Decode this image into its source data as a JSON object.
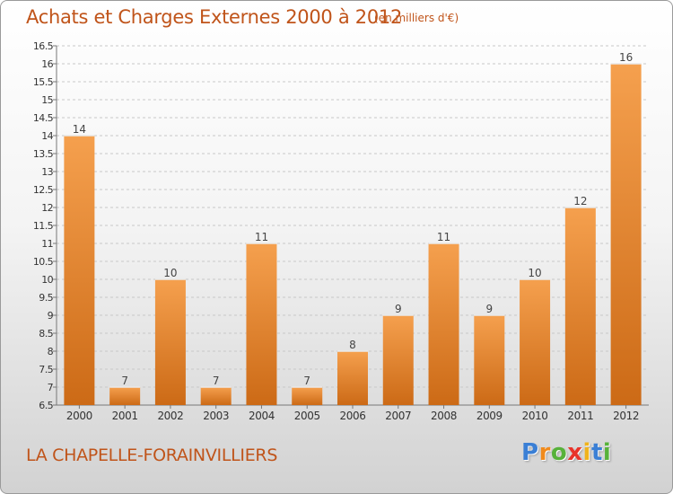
{
  "title": "Achats et Charges Externes 2000 à 2012",
  "units": "(en milliers d'€)",
  "commune": "LA CHAPELLE-FORAINVILLIERS",
  "logo": {
    "letters": [
      "P",
      "r",
      "o",
      "x",
      "i",
      "t",
      "i"
    ],
    "colors": [
      "#3a7fd5",
      "#f08a1c",
      "#57b23a",
      "#e8332a",
      "#f0b31c",
      "#3a7fd5",
      "#57b23a"
    ]
  },
  "colors": {
    "bar_light": "#f5a04e",
    "bar_dark": "#cc6a16",
    "accent": "#c0541a"
  },
  "chart_data": {
    "type": "bar",
    "title": "Achats et Charges Externes 2000 à 2012",
    "categories": [
      "2000",
      "2001",
      "2002",
      "2003",
      "2004",
      "2005",
      "2006",
      "2007",
      "2008",
      "2009",
      "2010",
      "2011",
      "2012"
    ],
    "values": [
      14,
      7,
      10,
      7,
      11,
      7,
      8,
      9,
      11,
      9,
      10,
      12,
      16
    ],
    "data_labels": [
      "14",
      "7",
      "10",
      "7",
      "11",
      "7",
      "8",
      "9",
      "11",
      "9",
      "10",
      "12",
      "16"
    ],
    "ylim": [
      6.5,
      16.5
    ],
    "yticks": [
      "6.5",
      "7",
      "7.5",
      "8",
      "8.5",
      "9",
      "9.5",
      "10",
      "10.5",
      "11",
      "11.5",
      "12",
      "12.5",
      "13",
      "13.5",
      "14",
      "14.5",
      "15",
      "15.5",
      "16",
      "16.5"
    ],
    "grid": true,
    "legend": "none"
  }
}
